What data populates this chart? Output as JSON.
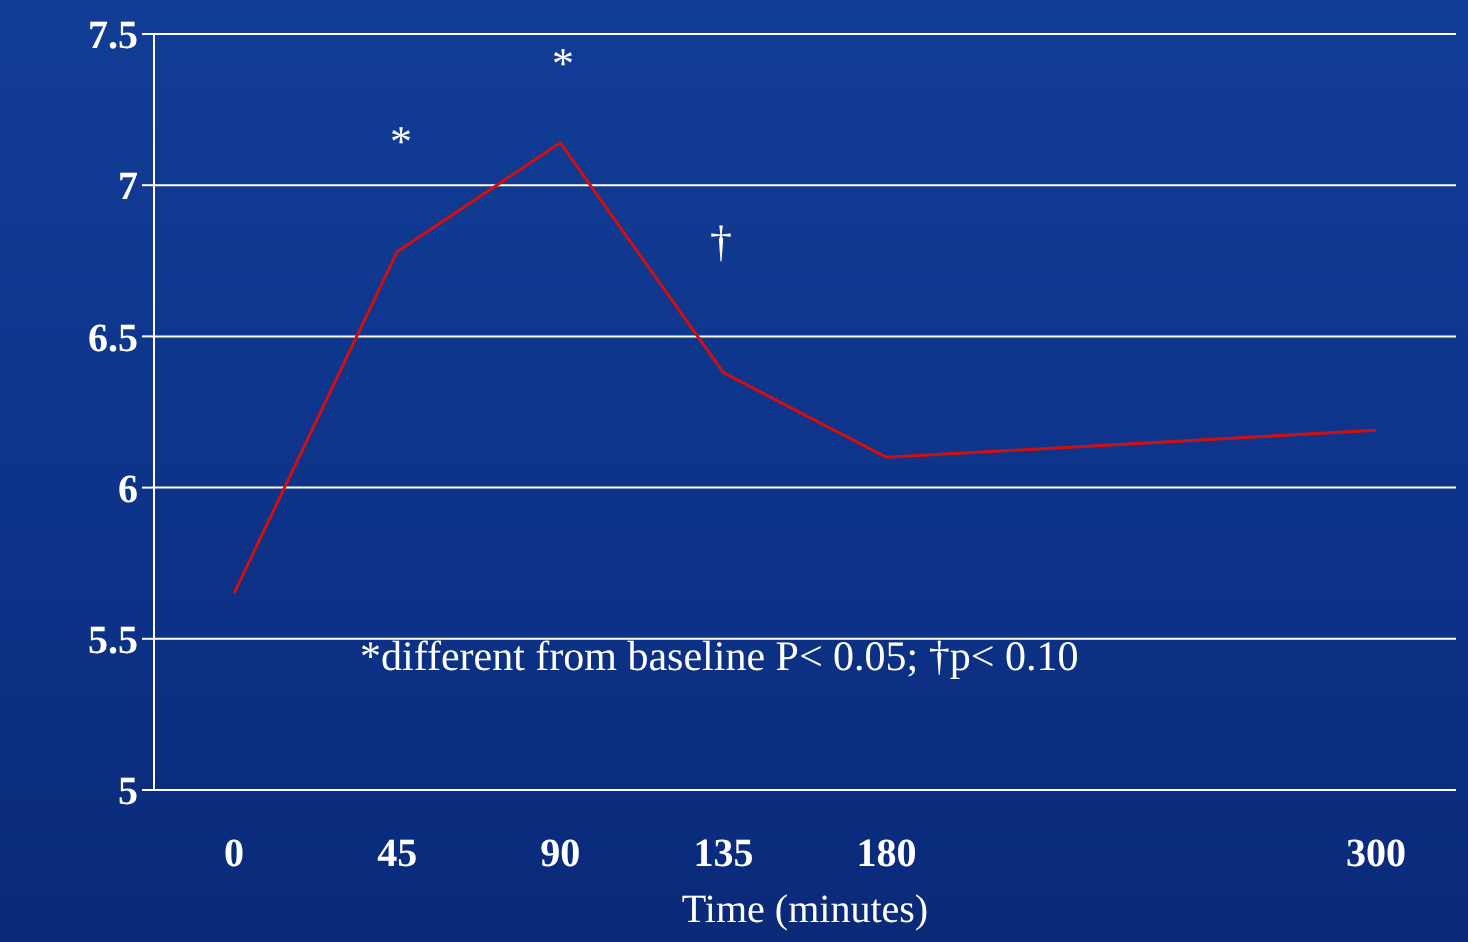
{
  "chart_data": {
    "type": "line",
    "xlabel": "Time (minutes)",
    "categories": [
      "0",
      "45",
      "90",
      "135",
      "180",
      null,
      null,
      "300"
    ],
    "series": [
      {
        "color": "#d01010",
        "values": [
          5.65,
          6.78,
          7.14,
          6.38,
          6.1,
          null,
          null,
          6.19
        ]
      }
    ],
    "ylim": [
      5,
      7.5
    ],
    "yticks": [
      5,
      5.5,
      6,
      6.5,
      7,
      7.5
    ],
    "grid": "y",
    "legend": false,
    "marker": "none",
    "line_style": "solid",
    "annotations": [
      "*",
      "*",
      "†",
      "*different from baseline P< 0.05; †p< 0.10"
    ]
  }
}
